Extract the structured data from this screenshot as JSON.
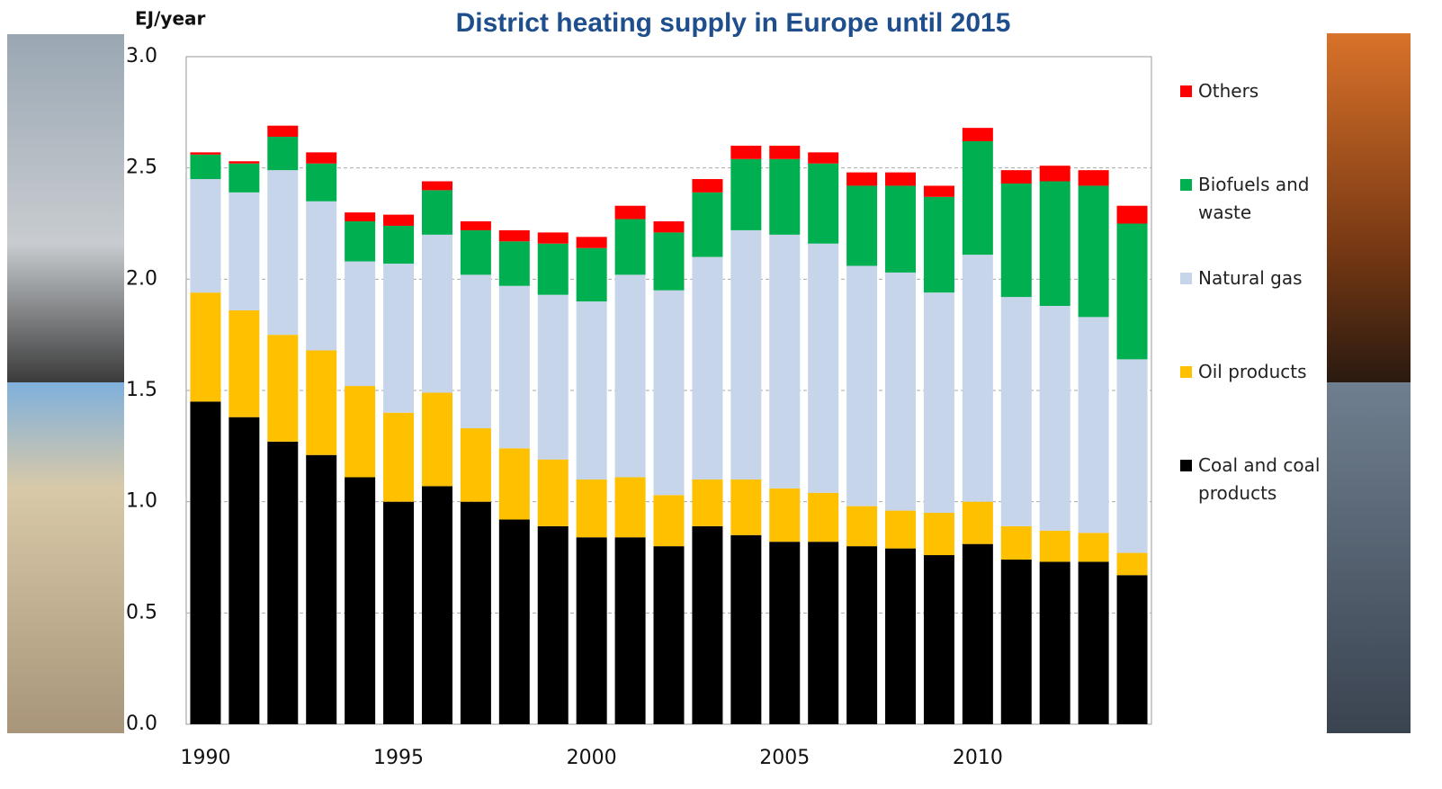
{
  "chart_data": {
    "type": "stacked_bar",
    "title": "District heating supply in Europe until 2015",
    "y_label": "EJ/year",
    "categories": [
      "1990",
      null,
      null,
      null,
      null,
      "1995",
      null,
      null,
      null,
      null,
      "2000",
      null,
      null,
      null,
      null,
      "2005",
      null,
      null,
      null,
      null,
      "2010",
      null,
      null,
      null,
      null
    ],
    "ylim": [
      0,
      3
    ],
    "yticks": [
      {
        "value": 0,
        "label": "0.0"
      },
      {
        "value": 0.5,
        "label": "0.5"
      },
      {
        "value": 1,
        "label": "1.0"
      },
      {
        "value": 1.5,
        "label": "1.5"
      },
      {
        "value": 2,
        "label": "2.0"
      },
      {
        "value": 2.5,
        "label": "2.5"
      },
      {
        "value": 3,
        "label": "3.0"
      }
    ],
    "grid": true,
    "legend": "right",
    "series": [
      {
        "name": "Coal and coal products",
        "color": "#000000",
        "values": [
          1.45,
          1.38,
          1.27,
          1.21,
          1.11,
          1.0,
          1.07,
          1.0,
          0.92,
          0.89,
          0.84,
          0.84,
          0.8,
          0.89,
          0.85,
          0.82,
          0.82,
          0.8,
          0.79,
          0.76,
          0.81,
          0.74,
          0.73,
          0.73,
          0.67
        ]
      },
      {
        "name": "Oil products",
        "color": "#ffc000",
        "values": [
          0.49,
          0.48,
          0.48,
          0.47,
          0.41,
          0.4,
          0.42,
          0.33,
          0.32,
          0.3,
          0.26,
          0.27,
          0.23,
          0.21,
          0.25,
          0.24,
          0.22,
          0.18,
          0.17,
          0.19,
          0.19,
          0.15,
          0.14,
          0.13,
          0.1
        ]
      },
      {
        "name": "Natural gas",
        "color": "#c6d5ea",
        "values": [
          0.51,
          0.53,
          0.74,
          0.67,
          0.56,
          0.67,
          0.71,
          0.69,
          0.73,
          0.74,
          0.8,
          0.91,
          0.92,
          1.0,
          1.12,
          1.14,
          1.12,
          1.08,
          1.07,
          0.99,
          1.11,
          1.03,
          1.01,
          0.97,
          0.87
        ]
      },
      {
        "name": "Biofuels and waste",
        "color": "#00b050",
        "values": [
          0.11,
          0.13,
          0.15,
          0.17,
          0.18,
          0.17,
          0.2,
          0.2,
          0.2,
          0.23,
          0.24,
          0.25,
          0.26,
          0.29,
          0.32,
          0.34,
          0.36,
          0.36,
          0.39,
          0.43,
          0.51,
          0.51,
          0.56,
          0.59,
          0.61
        ]
      },
      {
        "name": "Others",
        "color": "#ff0000",
        "values": [
          0.01,
          0.01,
          0.05,
          0.05,
          0.04,
          0.05,
          0.04,
          0.04,
          0.05,
          0.05,
          0.05,
          0.06,
          0.05,
          0.06,
          0.06,
          0.06,
          0.05,
          0.06,
          0.06,
          0.05,
          0.06,
          0.06,
          0.07,
          0.07,
          0.08
        ]
      }
    ]
  }
}
